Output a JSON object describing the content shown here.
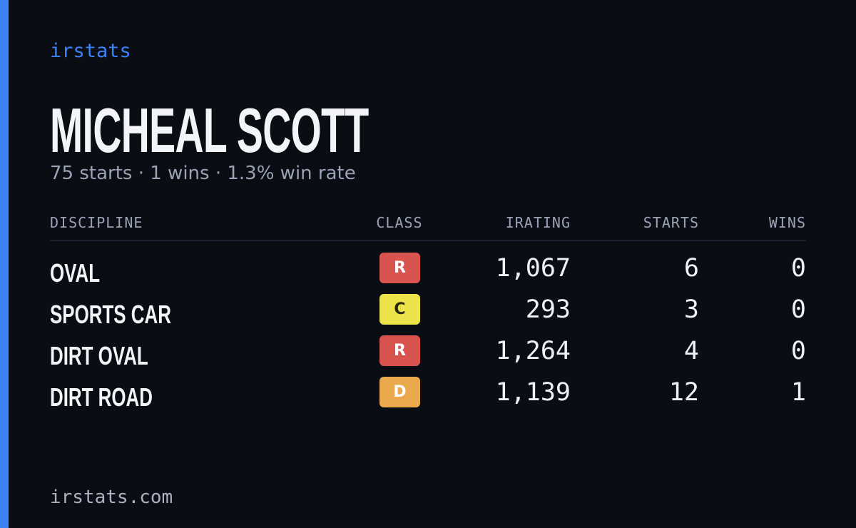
{
  "brand": "irstats",
  "name": "MICHEAL SCOTT",
  "summary": "75 starts · 1 wins · 1.3% win rate",
  "table": {
    "headers": [
      "DISCIPLINE",
      "CLASS",
      "IRATING",
      "STARTS",
      "WINS"
    ],
    "rows": [
      {
        "discipline": "OVAL",
        "class": "R",
        "class_color": "#d9534f",
        "irating": "1,067",
        "starts": "6",
        "wins": "0"
      },
      {
        "discipline": "SPORTS CAR",
        "class": "C",
        "class_color": "#ece24a",
        "irating": "293",
        "starts": "3",
        "wins": "0"
      },
      {
        "discipline": "DIRT OVAL",
        "class": "R",
        "class_color": "#d9534f",
        "irating": "1,264",
        "starts": "4",
        "wins": "0"
      },
      {
        "discipline": "DIRT ROAD",
        "class": "D",
        "class_color": "#eaa94c",
        "irating": "1,139",
        "starts": "12",
        "wins": "1"
      }
    ]
  },
  "footer": "irstats.com"
}
